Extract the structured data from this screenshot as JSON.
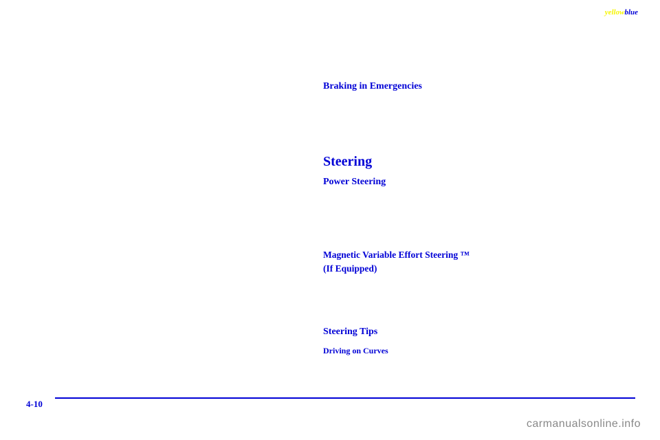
{
  "header": {
    "yellow": "yellow",
    "blue": "blue"
  },
  "sections": {
    "braking": "Braking in Emergencies",
    "steering": "Steering",
    "power": "Power Steering",
    "magnetic_line1": "Magnetic Variable Effort Steering ™",
    "magnetic_line2": "(If Equipped)",
    "tips": "Steering Tips",
    "curves": "Driving on Curves"
  },
  "page_number": "4-10",
  "watermark": "carmanualsonline.info"
}
